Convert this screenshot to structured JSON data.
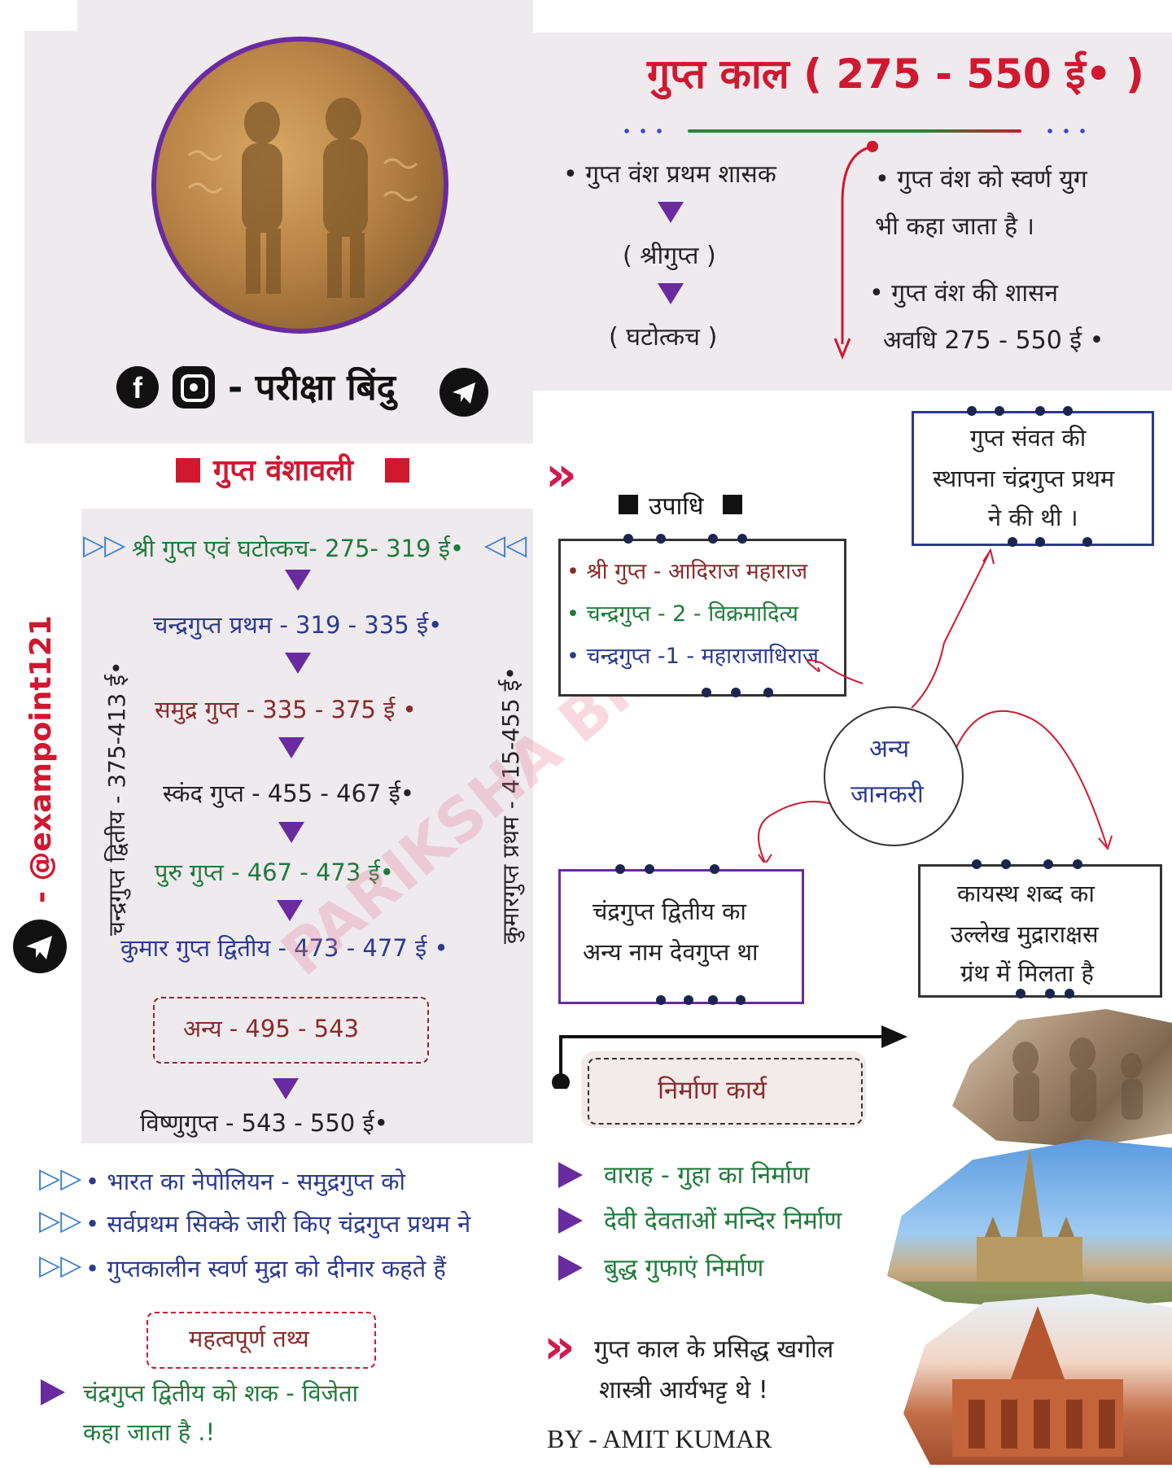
{
  "header": {
    "title": "गुप्त काल ( 275 - 550 ई• )",
    "first_ruler_label": "• गुप्त वंश प्रथम शासक",
    "first_ruler_1": "( श्रीगुप्त )",
    "first_ruler_2": "( घटोत्कच )",
    "golden_age": "• गुप्त वंश को स्वर्ण युग",
    "golden_age_2": "भी कहा जाता है ।",
    "rule_period": "• गुप्त वंश की शासन",
    "rule_period_2": "अवधि 275 - 550 ई •"
  },
  "brand": {
    "page_name": "- परीक्षा बिंदु",
    "handle": "- @exampoint121",
    "watermark": "PARIKSHA BINDU",
    "author": "BY - AMIT KUMAR"
  },
  "genealogy": {
    "title": "गुप्त वंशावली",
    "rows": [
      "श्री गुप्त एवं घटोत्कच- 275- 319 ई•",
      "चन्द्रगुप्त प्रथम - 319 - 335 ई•",
      "समुद्र गुप्त - 335 - 375 ई •",
      "स्कंद गुप्त - 455 - 467 ई•",
      "पुरु गुप्त - 467 - 473 ई•",
      "कुमार गुप्त द्वितीय - 473 - 477 ई •"
    ],
    "other": "अन्य - 495 - 543",
    "last": "विष्णुगुप्त - 543 - 550 ई•",
    "left_vertical": "चन्द्रगुप्त द्वितीय - 375-413 ई•",
    "right_vertical": "कुमारगुप्त प्रथम - 415-455 ई•"
  },
  "facts_left": [
    "• भारत का नेपोलियन - समुद्रगुप्त को",
    "• सर्वप्रथम सिक्के जारी किए चंद्रगुप्त प्रथम ने",
    "• गुप्तकालीन स्वर्ण मुद्रा को दीनार कहते हैं"
  ],
  "important": {
    "label": "महत्वपूर्ण तथ्य",
    "line1": "चंद्रगुप्त द्वितीय को शक - विजेता",
    "line2": "कहा जाता है .!"
  },
  "titles": {
    "heading": "उपाधि",
    "items": [
      "• श्री गुप्त - आदिराज महाराज",
      "• चन्द्रगुप्त - 2 - विक्रमादित्य",
      "• चन्द्रगुप्त -1 - महाराजाधिराज"
    ]
  },
  "samvat": [
    "गुप्त संवत की",
    "स्थापना चंद्रगुप्त प्रथम",
    "ने की थी ।"
  ],
  "other_info": [
    "अन्य",
    "जानकरी"
  ],
  "devgupt": [
    "चंद्रगुप्त द्वितीय का",
    "अन्य नाम देवगुप्त था"
  ],
  "kayasth": [
    "कायस्थ शब्द का",
    "उल्लेख मुद्राराक्षस",
    "ग्रंथ में मिलता है"
  ],
  "construction": {
    "label": "निर्माण कार्य",
    "items": [
      "वाराह - गुहा का निर्माण",
      "देवी देवताओं मन्दिर निर्माण",
      "बुद्ध गुफाएं निर्माण"
    ]
  },
  "aryabhatta": [
    "गुप्त काल के प्रसिद्ध खगोल",
    "शास्त्री आर्यभट्ट थे !"
  ],
  "colors": {
    "title_red": "#d0182f",
    "purple": "#6a2aa0",
    "navy": "#2b3a8f",
    "green": "#1f7a3a",
    "maroon": "#8a2a2a"
  }
}
